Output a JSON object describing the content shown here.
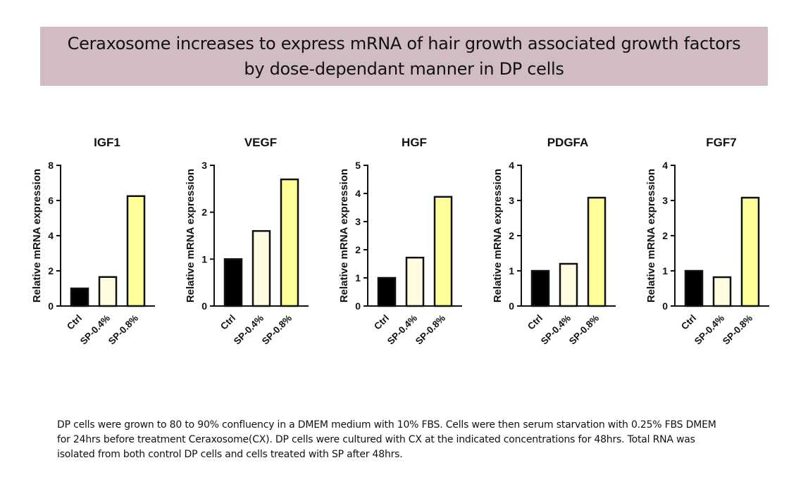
{
  "title": {
    "line1": "Ceraxosome increases to express mRNA of hair growth associated growth factors",
    "line2": "by dose-dependant manner in DP cells"
  },
  "colors": {
    "banner": "#d1bcc6",
    "ctrl": "#000000",
    "sp04": "#fffbe0",
    "sp08": "#ffff99"
  },
  "chart_data": [
    {
      "type": "bar",
      "title": "IGF1",
      "ylabel": "Relative mRNA expression",
      "categories": [
        "Ctrl",
        "SP-0.4%",
        "SP-0.8%"
      ],
      "values": [
        1.0,
        1.65,
        6.25
      ],
      "ylim": [
        0,
        8
      ],
      "yticks": [
        "0",
        "2",
        "4",
        "6",
        "8"
      ]
    },
    {
      "type": "bar",
      "title": "VEGF",
      "ylabel": "Relative mRNA expression",
      "categories": [
        "Ctrl",
        "SP-0.4%",
        "SP-0.8%"
      ],
      "values": [
        1.0,
        1.6,
        2.7
      ],
      "ylim": [
        0,
        3
      ],
      "yticks": [
        "0",
        "1",
        "2",
        "3"
      ]
    },
    {
      "type": "bar",
      "title": "HGF",
      "ylabel": "Relative mRNA expression",
      "categories": [
        "Ctrl",
        "SP-0.4%",
        "SP-0.8%"
      ],
      "values": [
        1.0,
        1.72,
        3.88
      ],
      "ylim": [
        0,
        5
      ],
      "yticks": [
        "0",
        "1",
        "2",
        "3",
        "4",
        "5"
      ]
    },
    {
      "type": "bar",
      "title": "PDGFA",
      "ylabel": "Relative mRNA expression",
      "categories": [
        "Ctrl",
        "SP-0.4%",
        "SP-0.8%"
      ],
      "values": [
        1.0,
        1.2,
        3.08
      ],
      "ylim": [
        0,
        4
      ],
      "yticks": [
        "0",
        "1",
        "2",
        "3",
        "4"
      ]
    },
    {
      "type": "bar",
      "title": "FGF7",
      "ylabel": "Relative mRNA expression",
      "categories": [
        "Ctrl",
        "SP-0.4%",
        "SP-0.8%"
      ],
      "values": [
        1.0,
        0.82,
        3.08
      ],
      "ylim": [
        0,
        4
      ],
      "yticks": [
        "0",
        "1",
        "2",
        "3",
        "4"
      ]
    }
  ],
  "caption": {
    "line1": "DP cells were grown to 80 to 90% confluency in a DMEM medium with 10% FBS. Cells were then serum starvation with 0.25% FBS DMEM",
    "line2": "for 24hrs before treatment Ceraxosome(CX). DP cells were cultured with CX at the indicated concentrations for 48hrs. Total RNA was",
    "line3": "isolated from both control DP cells and cells treated with SP after 48hrs."
  }
}
